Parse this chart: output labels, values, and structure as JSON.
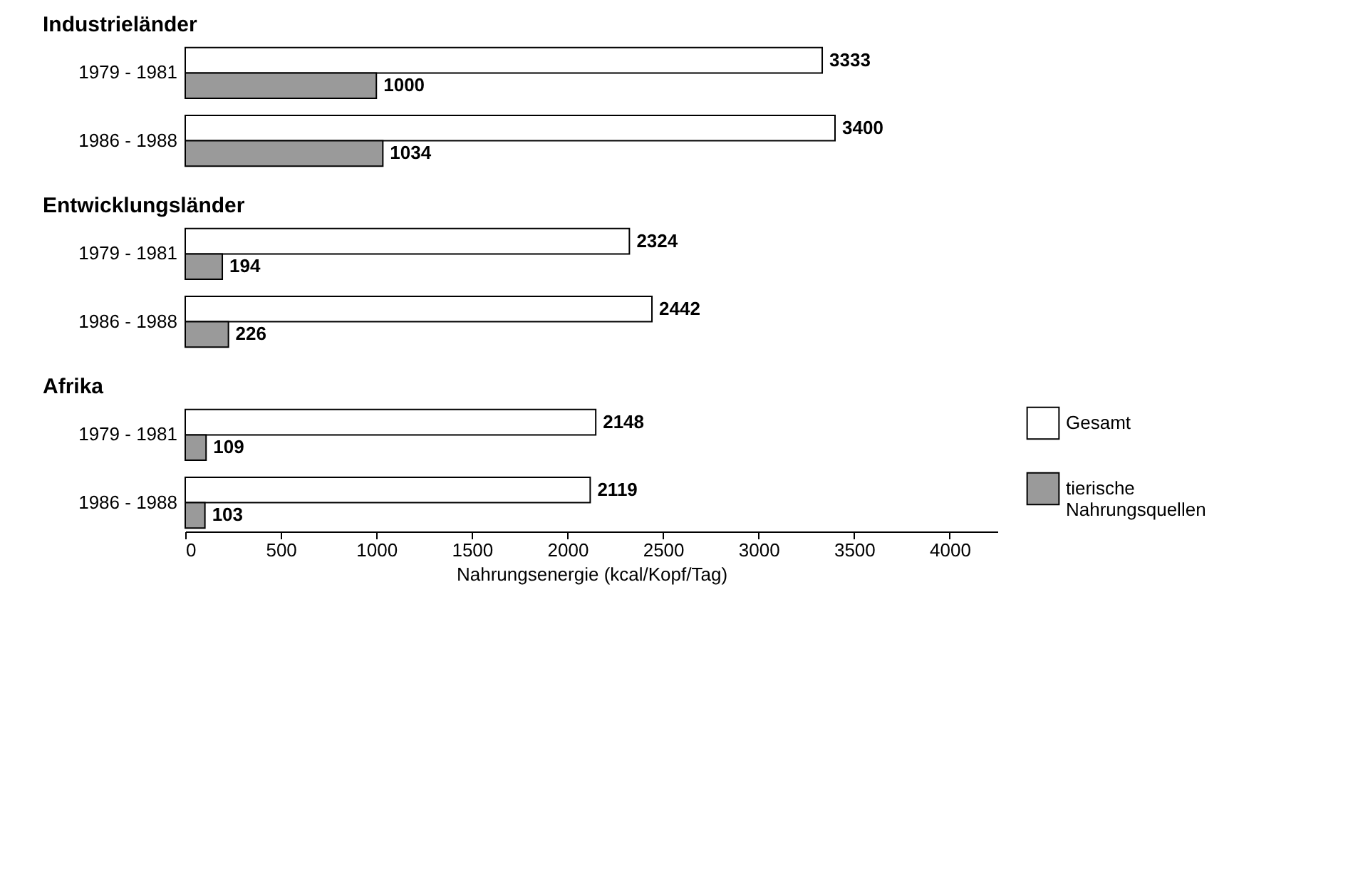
{
  "chart_data": [
    {
      "type": "bar",
      "orientation": "horizontal",
      "title": "Industrieländer",
      "categories": [
        "1979 - 1981",
        "1986 - 1988"
      ],
      "series": [
        {
          "color": "#ffffff",
          "values": [
            3333,
            3400
          ]
        },
        {
          "color": "#9a9a9a",
          "values": [
            1000,
            1034
          ]
        }
      ],
      "tick_labels": "y",
      "data_labels": true
    },
    {
      "type": "bar",
      "orientation": "horizontal",
      "title": "Entwicklungsländer",
      "categories": [
        "1979 - 1981",
        "1986 - 1988"
      ],
      "series": [
        {
          "color": "#ffffff",
          "values": [
            2324,
            2442
          ]
        },
        {
          "color": "#9a9a9a",
          "values": [
            194,
            226
          ]
        }
      ],
      "tick_labels": "y",
      "data_labels": true
    },
    {
      "type": "bar",
      "orientation": "horizontal",
      "title": "Afrika",
      "xlabel": "Nahrungsenergie (kcal/Kopf/Tag)",
      "categories": [
        "1979 - 1981",
        "1986 - 1988"
      ],
      "series": [
        {
          "name": "Gesamt",
          "color": "#ffffff",
          "values": [
            2148,
            2119
          ]
        },
        {
          "name": "tierische Nahrungsquellen",
          "color": "#9a9a9a",
          "values": [
            109,
            103
          ]
        }
      ],
      "xlim": [
        0,
        4250
      ],
      "xticks": [
        0,
        500,
        1000,
        1500,
        2000,
        2500,
        3000,
        3500,
        4000
      ],
      "data_labels": true,
      "legend": "right"
    }
  ]
}
